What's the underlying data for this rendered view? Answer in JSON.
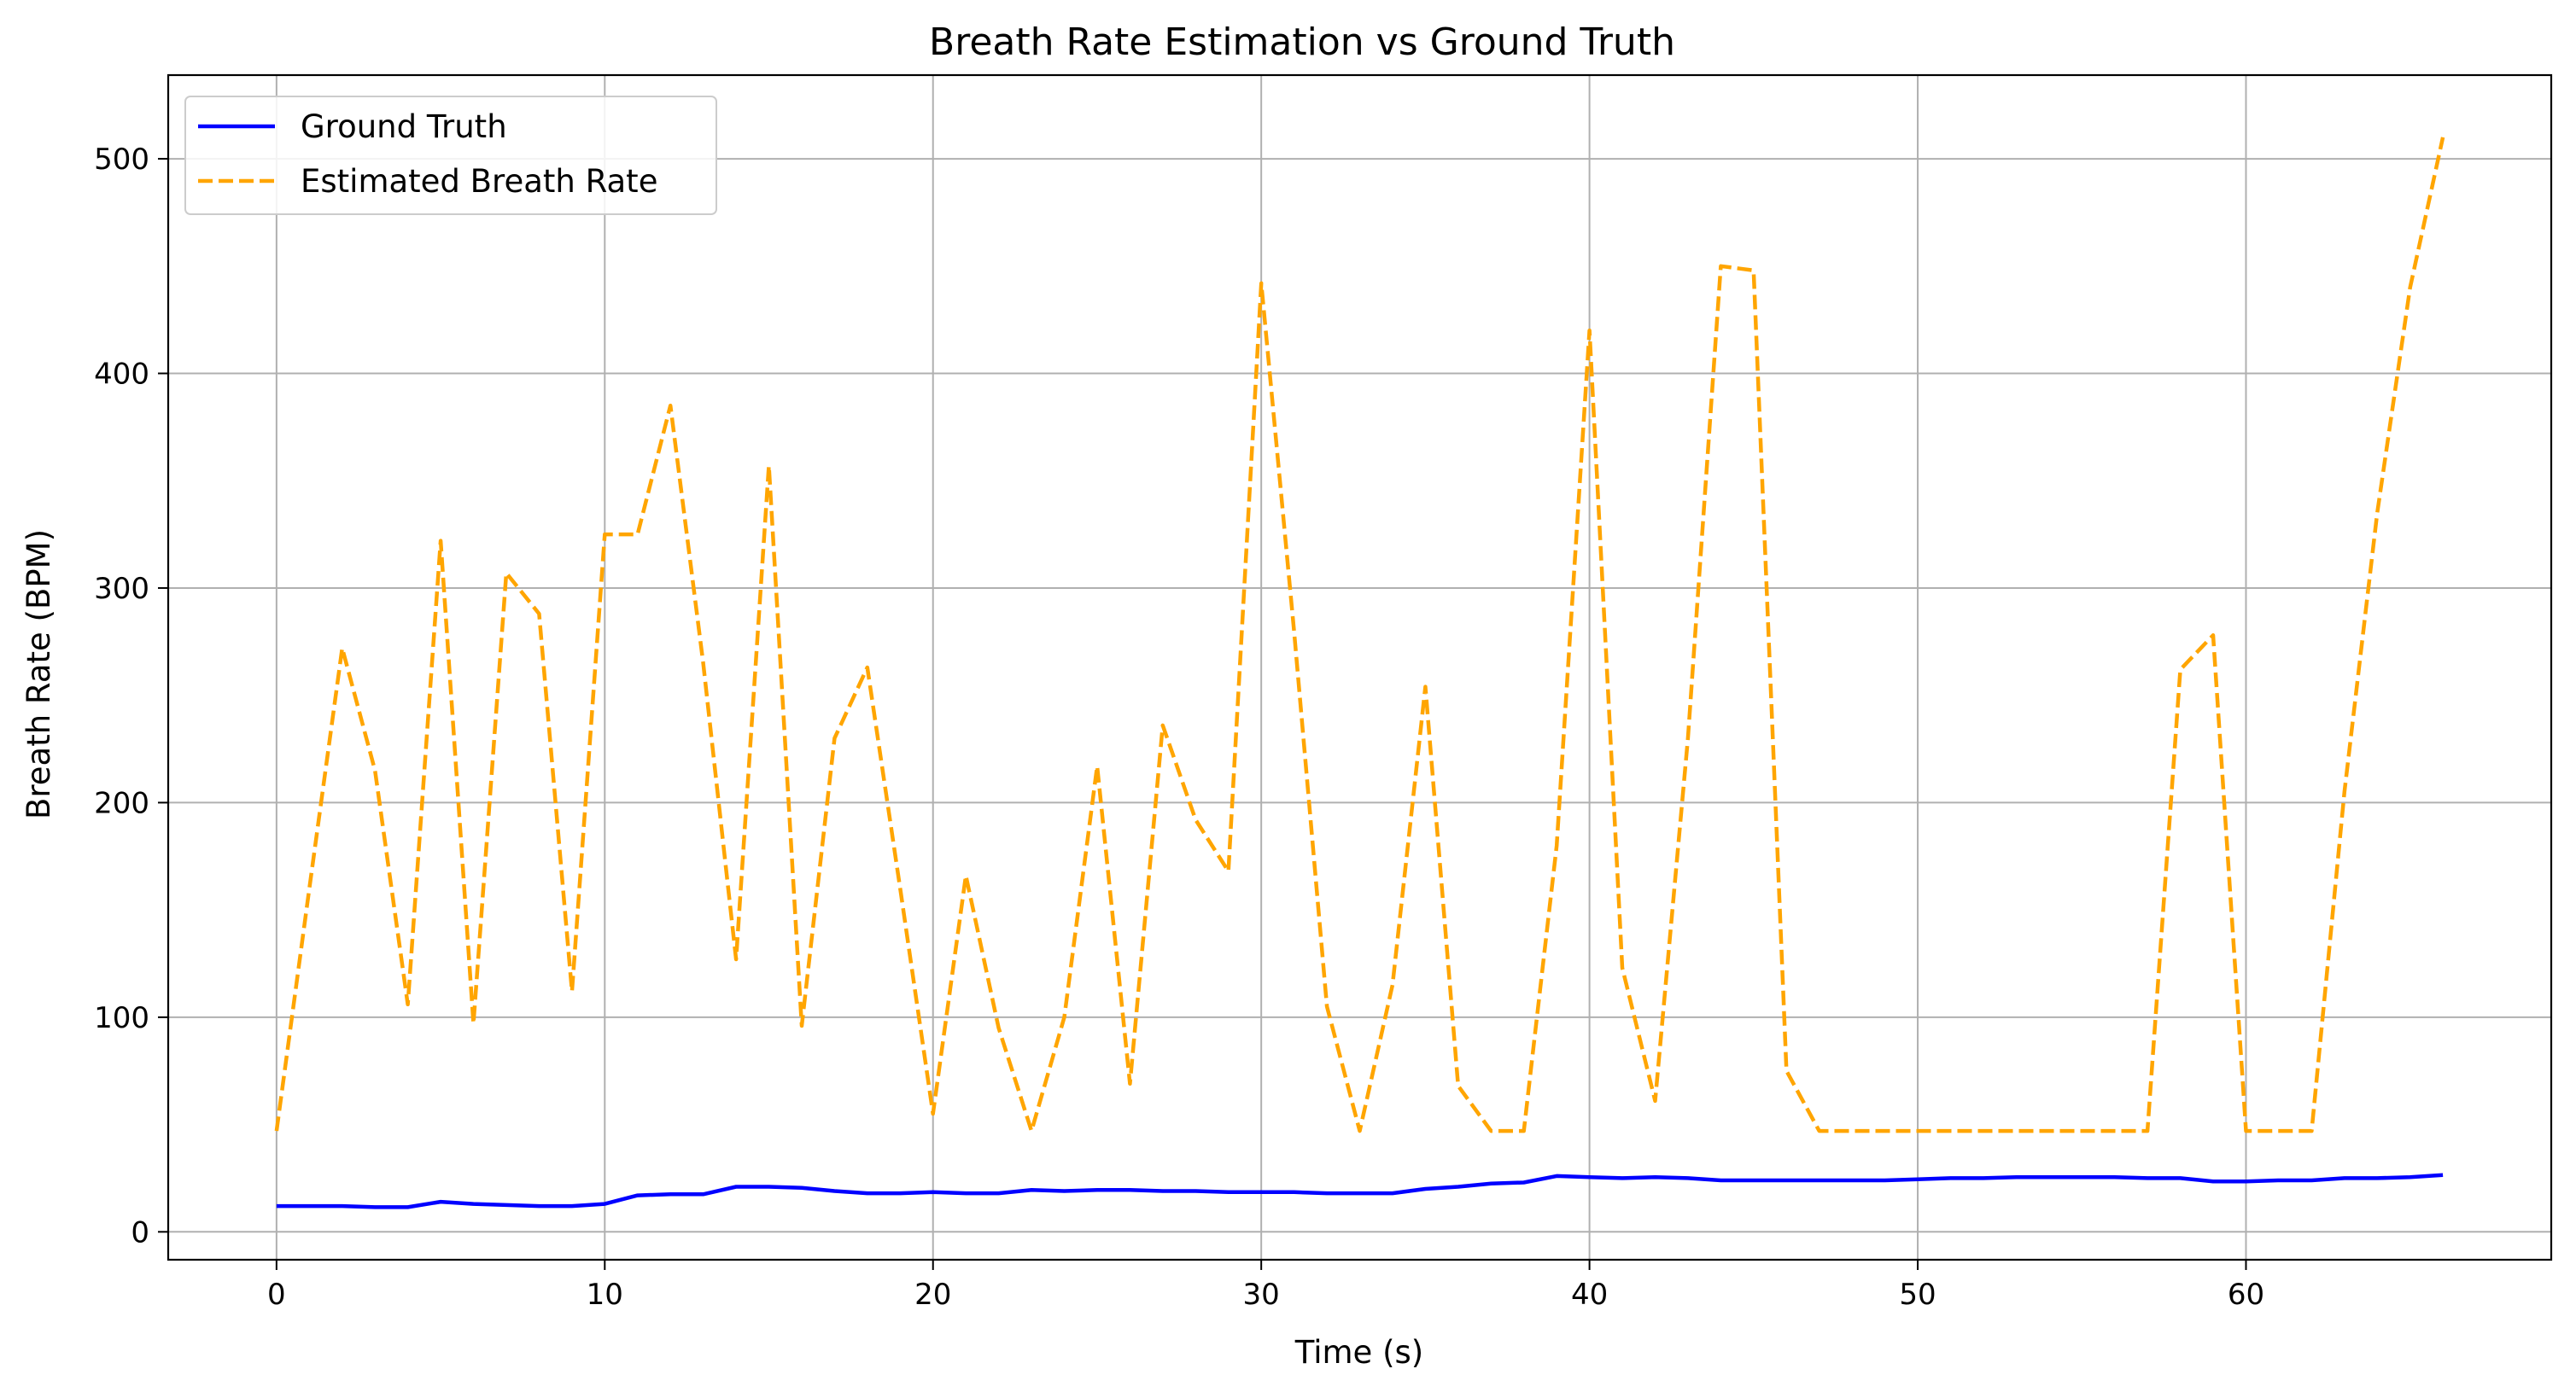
{
  "chart_data": {
    "type": "line",
    "title": "Breath Rate Estimation vs Ground Truth",
    "xlabel": "Time (s)",
    "ylabel": "Breath Rate (BPM)",
    "xlim": [
      -3.3,
      69.3
    ],
    "ylim": [
      -13,
      539
    ],
    "xticks": [
      0,
      10,
      20,
      30,
      40,
      50,
      60
    ],
    "yticks": [
      0,
      100,
      200,
      300,
      400,
      500
    ],
    "grid": true,
    "legend_position": "upper-left",
    "x": [
      0,
      1,
      2,
      3,
      4,
      5,
      6,
      7,
      8,
      9,
      10,
      11,
      12,
      13,
      14,
      15,
      16,
      17,
      18,
      19,
      20,
      21,
      22,
      23,
      24,
      25,
      26,
      27,
      28,
      29,
      30,
      31,
      32,
      33,
      34,
      35,
      36,
      37,
      38,
      39,
      40,
      41,
      42,
      43,
      44,
      45,
      46,
      47,
      48,
      49,
      50,
      51,
      52,
      53,
      54,
      55,
      56,
      57,
      58,
      59,
      60,
      61,
      62,
      63,
      64,
      65,
      66
    ],
    "series": [
      {
        "name": "Ground Truth",
        "color": "#0000ff",
        "style": "solid",
        "values": [
          12,
          12,
          12,
          11.5,
          11.5,
          14,
          13,
          12.5,
          12,
          12,
          13,
          17,
          17.5,
          17.5,
          21,
          21,
          20.5,
          19,
          18,
          18,
          18.5,
          18,
          18,
          19.5,
          19,
          19.5,
          19.5,
          19,
          19,
          18.5,
          18.5,
          18.5,
          18,
          18,
          18,
          20,
          21,
          22.5,
          23,
          26,
          25.5,
          25,
          25.5,
          25,
          24,
          24,
          24,
          24,
          24,
          24,
          24.5,
          25,
          25,
          25.5,
          25.5,
          25.5,
          25.5,
          25,
          25,
          23.5,
          23.5,
          24,
          24,
          25,
          25,
          25.5,
          26.5
        ]
      },
      {
        "name": "Estimated Breath Rate",
        "color": "#ffa500",
        "style": "dashed",
        "values": [
          47,
          160,
          272,
          215,
          106,
          322,
          97,
          307,
          288,
          112,
          325,
          325,
          385,
          265,
          127,
          357,
          96,
          230,
          263,
          160,
          55,
          166,
          95,
          47,
          100,
          217,
          69,
          236,
          192,
          168,
          442,
          280,
          105,
          47,
          115,
          254,
          68,
          47,
          47,
          180,
          420,
          123,
          61,
          230,
          450,
          448,
          75,
          47,
          47,
          47,
          47,
          47,
          47,
          47,
          47,
          47,
          47,
          47,
          262,
          278,
          47,
          47,
          47,
          205,
          335,
          440,
          510
        ]
      }
    ]
  }
}
